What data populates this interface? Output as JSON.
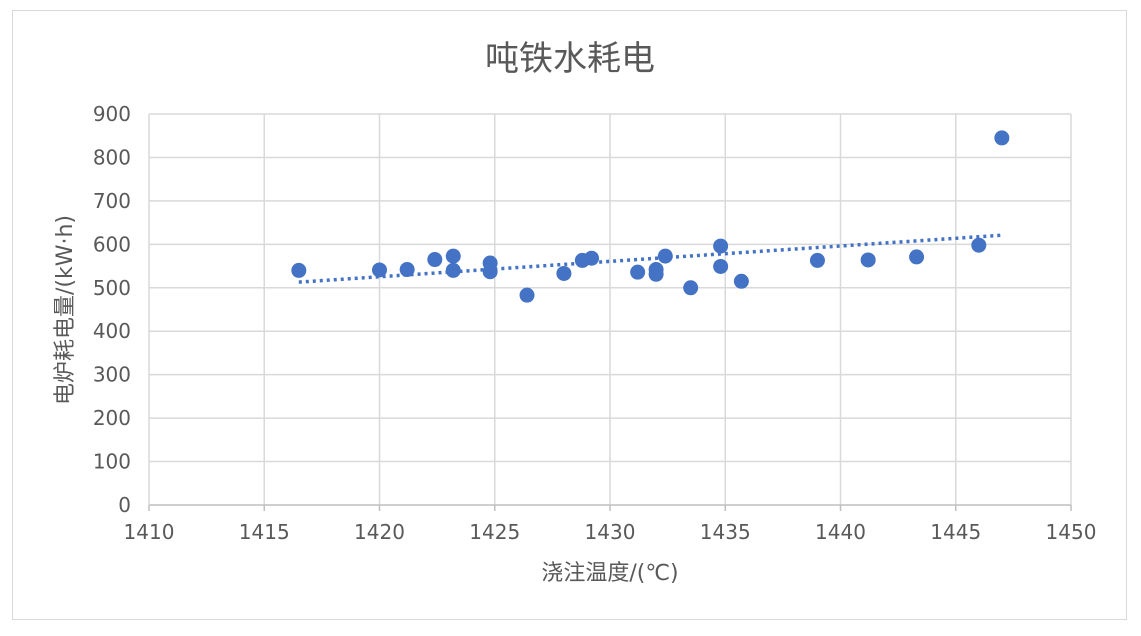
{
  "chart_data": {
    "type": "scatter",
    "title": "吨铁水耗电",
    "xlabel": "浇注温度/(℃)",
    "ylabel": "电炉耗电量/(kW·h)",
    "xlim": [
      1410,
      1450
    ],
    "ylim": [
      0,
      900
    ],
    "x_ticks": [
      "1410",
      "1415",
      "1420",
      "1425",
      "1430",
      "1435",
      "1440",
      "1445",
      "1450"
    ],
    "y_ticks": [
      "0",
      "100",
      "200",
      "300",
      "400",
      "500",
      "600",
      "700",
      "800",
      "900"
    ],
    "grid": true,
    "legend": "none",
    "series": [
      {
        "color": "#4472C4",
        "points": [
          {
            "x": 1416.5,
            "y": 540
          },
          {
            "x": 1420.0,
            "y": 541
          },
          {
            "x": 1421.2,
            "y": 542
          },
          {
            "x": 1422.4,
            "y": 565
          },
          {
            "x": 1423.2,
            "y": 573
          },
          {
            "x": 1423.2,
            "y": 540
          },
          {
            "x": 1424.8,
            "y": 557
          },
          {
            "x": 1424.8,
            "y": 537
          },
          {
            "x": 1426.4,
            "y": 483
          },
          {
            "x": 1428.0,
            "y": 533
          },
          {
            "x": 1428.8,
            "y": 563
          },
          {
            "x": 1429.2,
            "y": 568
          },
          {
            "x": 1431.2,
            "y": 536
          },
          {
            "x": 1432.0,
            "y": 542
          },
          {
            "x": 1432.0,
            "y": 531
          },
          {
            "x": 1432.4,
            "y": 573
          },
          {
            "x": 1433.5,
            "y": 500
          },
          {
            "x": 1434.8,
            "y": 596
          },
          {
            "x": 1434.8,
            "y": 549
          },
          {
            "x": 1435.7,
            "y": 515
          },
          {
            "x": 1439.0,
            "y": 563
          },
          {
            "x": 1441.2,
            "y": 564
          },
          {
            "x": 1443.3,
            "y": 571
          },
          {
            "x": 1446.0,
            "y": 598
          },
          {
            "x": 1447.0,
            "y": 845
          }
        ]
      }
    ],
    "trendline": {
      "type": "linear",
      "style": "dotted",
      "color": "#4472C4",
      "x": [
        1416.5,
        1447.0
      ],
      "y": [
        513,
        621
      ]
    }
  }
}
